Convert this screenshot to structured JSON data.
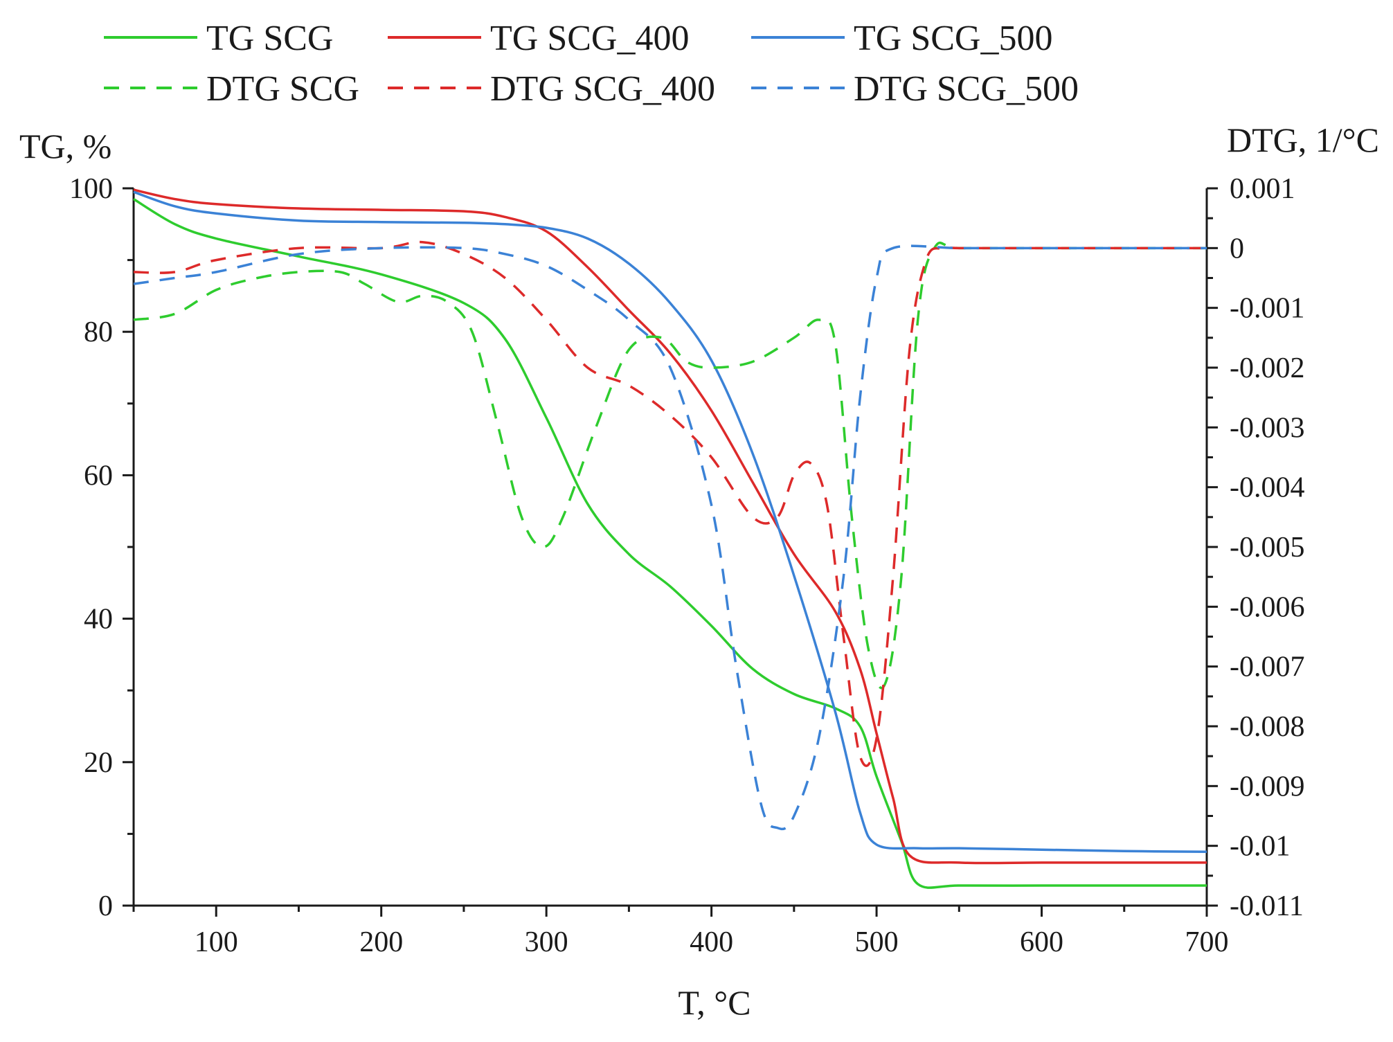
{
  "chart_data": {
    "type": "line",
    "title": "",
    "xlabel": "T, °C",
    "ylabel_left": "TG, %",
    "ylabel_right": "DTG, 1/°C",
    "xlim": [
      50,
      700
    ],
    "ylim_left": [
      0,
      100
    ],
    "ylim_right": [
      -0.011,
      0.001
    ],
    "x_ticks": [
      100,
      200,
      300,
      400,
      500,
      600,
      700
    ],
    "x_tick_labels": [
      "100",
      "200",
      "300",
      "400",
      "500",
      "600",
      "700"
    ],
    "y_left_ticks": [
      0,
      20,
      40,
      60,
      80,
      100
    ],
    "y_left_tick_labels": [
      "0",
      "20",
      "40",
      "60",
      "80",
      "100"
    ],
    "y_right_ticks": [
      0.001,
      0,
      -0.001,
      -0.002,
      -0.003,
      -0.004,
      -0.005,
      -0.006,
      -0.007,
      -0.008,
      -0.009,
      -0.01,
      -0.011
    ],
    "y_right_tick_labels": [
      "0.001",
      "0",
      "-0.001",
      "-0.002",
      "-0.003",
      "-0.004",
      "-0.005",
      "-0.006",
      "-0.007",
      "-0.008",
      "-0.009",
      "-0.01",
      "-0.011"
    ],
    "grid": false,
    "legend_position": "top",
    "series": [
      {
        "name": "TG SCG",
        "label": "TG SCG",
        "axis": "left",
        "color": "#2ecc2e",
        "dash": "solid",
        "points": [
          [
            50,
            98.5
          ],
          [
            75,
            95
          ],
          [
            100,
            93
          ],
          [
            150,
            90.5
          ],
          [
            200,
            88
          ],
          [
            250,
            84
          ],
          [
            275,
            79
          ],
          [
            300,
            68
          ],
          [
            325,
            56
          ],
          [
            350,
            49
          ],
          [
            375,
            44.5
          ],
          [
            400,
            39
          ],
          [
            425,
            33
          ],
          [
            450,
            29.5
          ],
          [
            475,
            27.5
          ],
          [
            490,
            25
          ],
          [
            500,
            18
          ],
          [
            515,
            9
          ],
          [
            525,
            3
          ],
          [
            550,
            2.8
          ],
          [
            600,
            2.8
          ],
          [
            650,
            2.8
          ],
          [
            700,
            2.8
          ]
        ]
      },
      {
        "name": "TG SCG_400",
        "label": "TG SCG_400",
        "axis": "left",
        "color": "#dd2a2a",
        "dash": "solid",
        "points": [
          [
            50,
            99.8
          ],
          [
            75,
            98.5
          ],
          [
            100,
            97.8
          ],
          [
            150,
            97.2
          ],
          [
            200,
            97
          ],
          [
            250,
            96.8
          ],
          [
            275,
            96
          ],
          [
            300,
            94
          ],
          [
            325,
            89
          ],
          [
            350,
            83
          ],
          [
            375,
            77
          ],
          [
            400,
            69
          ],
          [
            425,
            59
          ],
          [
            450,
            49
          ],
          [
            475,
            41
          ],
          [
            490,
            33
          ],
          [
            500,
            24
          ],
          [
            510,
            15
          ],
          [
            520,
            7
          ],
          [
            550,
            6
          ],
          [
            600,
            6
          ],
          [
            650,
            6
          ],
          [
            700,
            6
          ]
        ]
      },
      {
        "name": "TG SCG_500",
        "label": "TG SCG_500",
        "axis": "left",
        "color": "#3b82d6",
        "dash": "solid",
        "points": [
          [
            50,
            99.5
          ],
          [
            75,
            97.5
          ],
          [
            100,
            96.5
          ],
          [
            150,
            95.5
          ],
          [
            200,
            95.3
          ],
          [
            250,
            95.2
          ],
          [
            275,
            95
          ],
          [
            300,
            94.5
          ],
          [
            325,
            93
          ],
          [
            350,
            89.5
          ],
          [
            375,
            84
          ],
          [
            400,
            76
          ],
          [
            425,
            63
          ],
          [
            450,
            46
          ],
          [
            475,
            27
          ],
          [
            490,
            13
          ],
          [
            500,
            8.5
          ],
          [
            525,
            8
          ],
          [
            550,
            8
          ],
          [
            600,
            7.8
          ],
          [
            650,
            7.6
          ],
          [
            700,
            7.5
          ]
        ]
      },
      {
        "name": "DTG SCG",
        "label": "DTG SCG",
        "axis": "right",
        "color": "#2ecc2e",
        "dash": "dashed",
        "points": [
          [
            50,
            -0.0012
          ],
          [
            75,
            -0.0011
          ],
          [
            100,
            -0.0007
          ],
          [
            125,
            -0.0005
          ],
          [
            150,
            -0.0004
          ],
          [
            175,
            -0.0004
          ],
          [
            190,
            -0.0006
          ],
          [
            210,
            -0.0009
          ],
          [
            225,
            -0.0008
          ],
          [
            240,
            -0.0009
          ],
          [
            255,
            -0.0014
          ],
          [
            270,
            -0.0029
          ],
          [
            285,
            -0.0045
          ],
          [
            298,
            -0.005
          ],
          [
            310,
            -0.0045
          ],
          [
            330,
            -0.003
          ],
          [
            350,
            -0.0017
          ],
          [
            370,
            -0.0015
          ],
          [
            385,
            -0.0019
          ],
          [
            400,
            -0.002
          ],
          [
            425,
            -0.0019
          ],
          [
            450,
            -0.0015
          ],
          [
            465,
            -0.0012
          ],
          [
            475,
            -0.0016
          ],
          [
            485,
            -0.0045
          ],
          [
            495,
            -0.0067
          ],
          [
            505,
            -0.0073
          ],
          [
            515,
            -0.0055
          ],
          [
            525,
            -0.0012
          ],
          [
            535,
            0
          ],
          [
            550,
            0
          ],
          [
            600,
            0
          ],
          [
            650,
            0
          ],
          [
            700,
            0
          ]
        ]
      },
      {
        "name": "DTG SCG_400",
        "label": "DTG SCG_400",
        "axis": "right",
        "color": "#dd2a2a",
        "dash": "dashed",
        "points": [
          [
            50,
            -0.0004
          ],
          [
            75,
            -0.0004
          ],
          [
            100,
            -0.0002
          ],
          [
            150,
            0
          ],
          [
            200,
            0
          ],
          [
            225,
            0.0001
          ],
          [
            250,
            -0.0001
          ],
          [
            275,
            -0.0005
          ],
          [
            300,
            -0.0012
          ],
          [
            325,
            -0.002
          ],
          [
            350,
            -0.0023
          ],
          [
            375,
            -0.0028
          ],
          [
            400,
            -0.0035
          ],
          [
            425,
            -0.0045
          ],
          [
            440,
            -0.0045
          ],
          [
            450,
            -0.0038
          ],
          [
            460,
            -0.0036
          ],
          [
            470,
            -0.0043
          ],
          [
            480,
            -0.0065
          ],
          [
            490,
            -0.0085
          ],
          [
            500,
            -0.0082
          ],
          [
            510,
            -0.0055
          ],
          [
            520,
            -0.0017
          ],
          [
            530,
            -0.0002
          ],
          [
            540,
            0
          ],
          [
            550,
            0
          ],
          [
            600,
            0
          ],
          [
            650,
            0
          ],
          [
            700,
            0
          ]
        ]
      },
      {
        "name": "DTG SCG_500",
        "label": "DTG SCG_500",
        "axis": "right",
        "color": "#3b82d6",
        "dash": "dashed",
        "points": [
          [
            50,
            -0.0006
          ],
          [
            75,
            -0.0005
          ],
          [
            100,
            -0.0004
          ],
          [
            150,
            -0.0001
          ],
          [
            200,
            0
          ],
          [
            250,
            0
          ],
          [
            275,
            -0.0001
          ],
          [
            300,
            -0.0003
          ],
          [
            325,
            -0.0007
          ],
          [
            350,
            -0.0012
          ],
          [
            375,
            -0.002
          ],
          [
            400,
            -0.0043
          ],
          [
            415,
            -0.007
          ],
          [
            430,
            -0.0093
          ],
          [
            440,
            -0.0097
          ],
          [
            450,
            -0.0095
          ],
          [
            465,
            -0.0082
          ],
          [
            480,
            -0.0055
          ],
          [
            490,
            -0.0025
          ],
          [
            500,
            -0.0005
          ],
          [
            510,
            0
          ],
          [
            550,
            0
          ],
          [
            600,
            0
          ],
          [
            650,
            0
          ],
          [
            700,
            0
          ]
        ]
      }
    ]
  }
}
